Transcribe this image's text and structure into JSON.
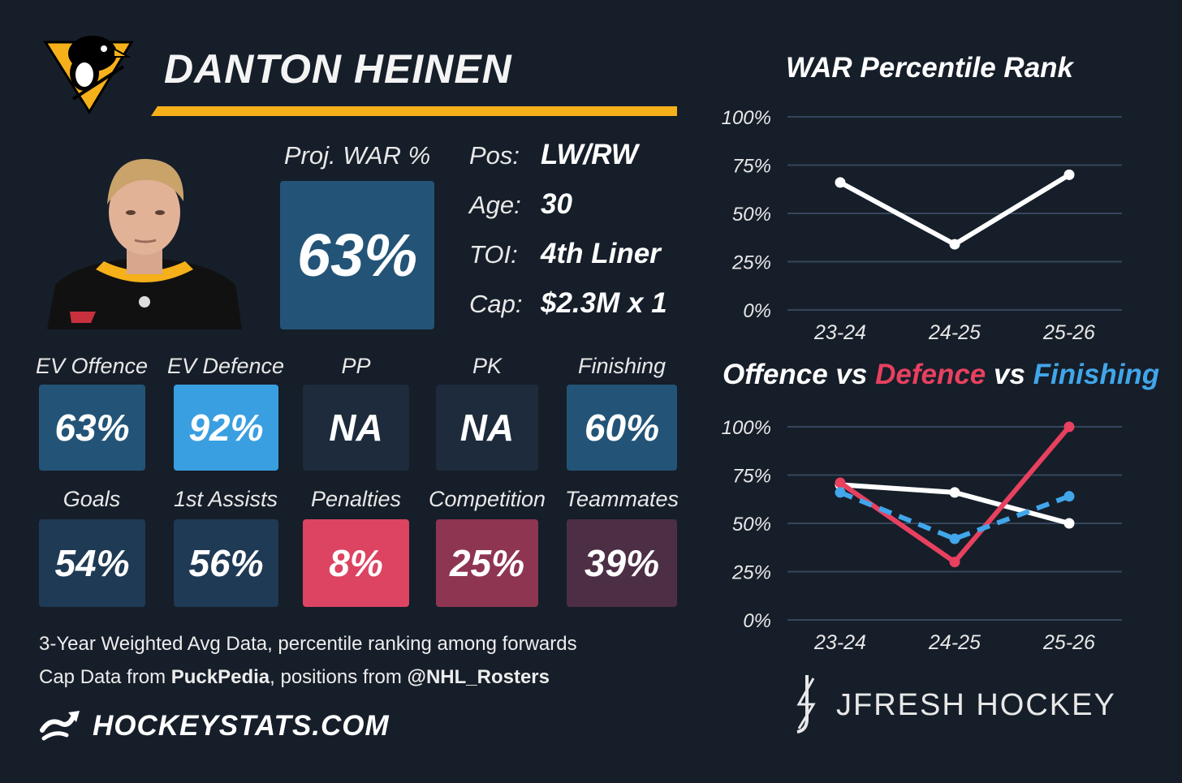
{
  "player": {
    "name": "DANTON HEINEN",
    "team": "Pittsburgh Penguins",
    "colors": {
      "gold": "#f5b01a",
      "black": "#000000"
    }
  },
  "proj_war": {
    "label": "Proj. WAR %",
    "value": "63%"
  },
  "info": [
    {
      "label": "Pos:",
      "value": "LW/RW"
    },
    {
      "label": "Age:",
      "value": "30"
    },
    {
      "label": "TOI:",
      "value": "4th Liner"
    },
    {
      "label": "Cap:",
      "value": "$2.3M x 1"
    }
  ],
  "tiles": [
    {
      "label": "EV Offence",
      "value": "63%",
      "color": "#235477"
    },
    {
      "label": "EV Defence",
      "value": "92%",
      "color": "#3a9fe0"
    },
    {
      "label": "PP",
      "value": "NA",
      "color": "#1e2b3c"
    },
    {
      "label": "PK",
      "value": "NA",
      "color": "#1e2b3c"
    },
    {
      "label": "Finishing",
      "value": "60%",
      "color": "#235477"
    },
    {
      "label": "Goals",
      "value": "54%",
      "color": "#1f3a55"
    },
    {
      "label": "1st Assists",
      "value": "56%",
      "color": "#1f3a55"
    },
    {
      "label": "Penalties",
      "value": "8%",
      "color": "#dc4462"
    },
    {
      "label": "Competition",
      "value": "25%",
      "color": "#8e3552"
    },
    {
      "label": "Teammates",
      "value": "39%",
      "color": "#4d2f45"
    }
  ],
  "footer": {
    "line1": "3-Year Weighted Avg Data, percentile ranking among forwards",
    "line2_pre": "Cap Data from ",
    "line2_bold1": "PuckPedia",
    "line2_mid": ", positions from ",
    "line2_bold2": "@NHL_Rosters",
    "site": "HOCKEYSTATS.COM",
    "brand": "JFRESH HOCKEY"
  },
  "chart_data": [
    {
      "type": "line",
      "title": "WAR Percentile Rank",
      "categories": [
        "23-24",
        "24-25",
        "25-26"
      ],
      "series": [
        {
          "values": [
            66,
            34,
            70
          ],
          "color": "#ffffff"
        }
      ],
      "ylim": [
        0,
        100
      ],
      "yticks": [
        "0%",
        "25%",
        "50%",
        "75%",
        "100%"
      ],
      "grid": true
    },
    {
      "type": "line",
      "title_parts": [
        {
          "text": "Offence",
          "color": "#ffffff"
        },
        {
          "text": " vs ",
          "color": "#ffffff"
        },
        {
          "text": "Defence",
          "color": "#e8405f"
        },
        {
          "text": " vs ",
          "color": "#ffffff"
        },
        {
          "text": "Finishing",
          "color": "#41a6ea"
        }
      ],
      "categories": [
        "23-24",
        "24-25",
        "25-26"
      ],
      "series": [
        {
          "name": "Offence",
          "values": [
            70,
            66,
            50
          ],
          "color": "#ffffff",
          "dashed": false
        },
        {
          "name": "Defence",
          "values": [
            71,
            30,
            100
          ],
          "color": "#e8405f",
          "dashed": false
        },
        {
          "name": "Finishing",
          "values": [
            66,
            42,
            64
          ],
          "color": "#41a6ea",
          "dashed": true
        }
      ],
      "ylim": [
        0,
        100
      ],
      "yticks": [
        "0%",
        "25%",
        "50%",
        "75%",
        "100%"
      ],
      "grid": true
    }
  ]
}
